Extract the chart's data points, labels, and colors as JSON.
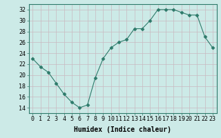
{
  "x": [
    0,
    1,
    2,
    3,
    4,
    5,
    6,
    7,
    8,
    9,
    10,
    11,
    12,
    13,
    14,
    15,
    16,
    17,
    18,
    19,
    20,
    21,
    22,
    23
  ],
  "y": [
    23,
    21.5,
    20.5,
    18.5,
    16.5,
    15,
    14,
    14.5,
    19.5,
    23,
    25,
    26,
    26.5,
    28.5,
    28.5,
    30,
    32,
    32,
    32,
    31.5,
    31,
    31,
    27,
    25
  ],
  "line_color": "#2d7a6a",
  "marker": "D",
  "marker_size": 2.5,
  "bg_color": "#cceae7",
  "grid_color": "#c8b8c0",
  "xlabel": "Humidex (Indice chaleur)",
  "ylim": [
    13,
    33
  ],
  "xlim": [
    -0.5,
    23.5
  ],
  "yticks": [
    14,
    16,
    18,
    20,
    22,
    24,
    26,
    28,
    30,
    32
  ],
  "xticks": [
    0,
    1,
    2,
    3,
    4,
    5,
    6,
    7,
    8,
    9,
    10,
    11,
    12,
    13,
    14,
    15,
    16,
    17,
    18,
    19,
    20,
    21,
    22,
    23
  ],
  "label_fontsize": 7,
  "tick_fontsize": 6
}
